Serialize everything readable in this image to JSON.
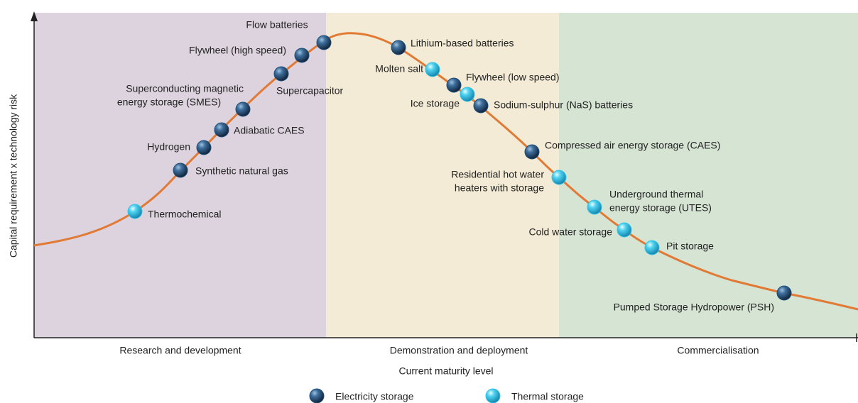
{
  "axes": {
    "x_label": "Current maturity level",
    "y_label": "Capital requirement x technology risk"
  },
  "stages": [
    "Research and development",
    "Demonstration and deployment",
    "Commercialisation"
  ],
  "legend": [
    {
      "label": "Electricity storage",
      "color": "#1f4f7a"
    },
    {
      "label": "Thermal storage",
      "color": "#35c4e6"
    }
  ],
  "nodes": [
    {
      "lines": [
        "Thermochemical"
      ],
      "storage": "Thermal storage"
    },
    {
      "lines": [
        "Synthetic natural gas"
      ],
      "storage": "Electricity storage"
    },
    {
      "lines": [
        "Hydrogen"
      ],
      "storage": "Electricity storage"
    },
    {
      "lines": [
        "Adiabatic CAES"
      ],
      "storage": "Electricity storage"
    },
    {
      "lines": [
        "Superconducting magnetic",
        "energy storage (SMES)"
      ],
      "storage": "Electricity storage"
    },
    {
      "lines": [
        "Supercapacitor"
      ],
      "storage": "Electricity storage"
    },
    {
      "lines": [
        "Flywheel (high speed)"
      ],
      "storage": "Electricity storage"
    },
    {
      "lines": [
        "Flow batteries"
      ],
      "storage": "Electricity storage"
    },
    {
      "lines": [
        "Lithium-based batteries"
      ],
      "storage": "Electricity storage"
    },
    {
      "lines": [
        "Molten salt"
      ],
      "storage": "Thermal storage"
    },
    {
      "lines": [
        "Flywheel (low speed)"
      ],
      "storage": "Electricity storage"
    },
    {
      "lines": [
        "Ice storage"
      ],
      "storage": "Thermal storage"
    },
    {
      "lines": [
        "Sodium-sulphur (NaS) batteries"
      ],
      "storage": "Electricity storage"
    },
    {
      "lines": [
        "Compressed air energy storage (CAES)"
      ],
      "storage": "Electricity storage"
    },
    {
      "lines": [
        "Residential hot water",
        "heaters with storage"
      ],
      "storage": "Thermal storage"
    },
    {
      "lines": [
        "Underground thermal",
        "energy storage (UTES)"
      ],
      "storage": "Thermal storage"
    },
    {
      "lines": [
        "Cold water storage"
      ],
      "storage": "Thermal storage"
    },
    {
      "lines": [
        "Pit storage"
      ],
      "storage": "Thermal storage"
    },
    {
      "lines": [
        "Pumped Storage Hydropower (PSH)"
      ],
      "storage": "Electricity storage"
    }
  ]
}
